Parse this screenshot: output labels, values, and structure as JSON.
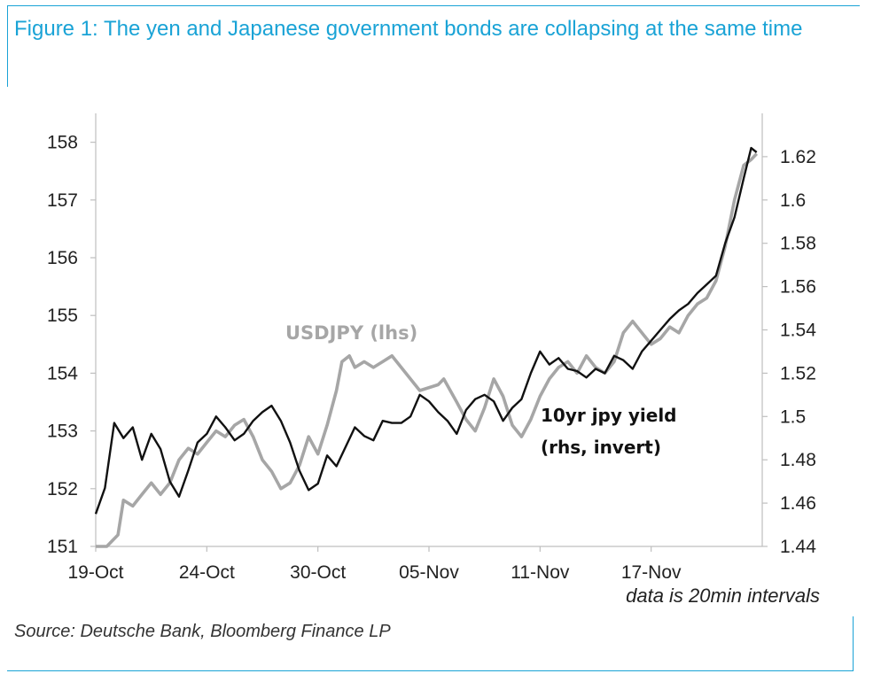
{
  "title": "Figure 1: The yen and Japanese government bonds are collapsing at the same time",
  "source": "Source: Deutsche Bank, Bloomberg Finance LP",
  "colors": {
    "title": "#1aa3d6",
    "usdjpy": "#a6a6a6",
    "yield": "#111111"
  },
  "chart_data": {
    "type": "line",
    "title": "Figure 1: The yen and Japanese government bonds are collapsing at the same time",
    "xlabel": "",
    "x_ticks": [
      "19-Oct",
      "24-Oct",
      "30-Oct",
      "05-Nov",
      "11-Nov",
      "17-Nov"
    ],
    "y_left": {
      "label": "USDJPY (lhs)",
      "ylim": [
        151,
        158.5
      ],
      "ticks": [
        "151",
        "152",
        "153",
        "154",
        "155",
        "156",
        "157",
        "158"
      ]
    },
    "y_right": {
      "label": "10yr jpy yield (rhs, invert)",
      "ylim": [
        1.44,
        1.64
      ],
      "ticks": [
        "1.44",
        "1.46",
        "1.48",
        "1.5",
        "1.52",
        "1.54",
        "1.56",
        "1.58",
        "1.6",
        "1.62"
      ]
    },
    "note": "data is 20min intervals",
    "series_labels": {
      "usdjpy": "USDJPY (lhs)",
      "yield_line1": "10yr  jpy yield",
      "yield_line2": "(rhs, invert)"
    },
    "series": [
      {
        "name": "USDJPY (lhs)",
        "axis": "left",
        "points": [
          [
            0,
            150.8
          ],
          [
            0.3,
            151.0
          ],
          [
            0.6,
            150.9
          ],
          [
            1.2,
            151.2
          ],
          [
            1.5,
            151.8
          ],
          [
            2.0,
            151.7
          ],
          [
            2.5,
            151.9
          ],
          [
            3.0,
            152.1
          ],
          [
            3.5,
            151.9
          ],
          [
            4.0,
            152.1
          ],
          [
            4.5,
            152.5
          ],
          [
            5.0,
            152.7
          ],
          [
            5.5,
            152.6
          ],
          [
            6.0,
            152.8
          ],
          [
            6.5,
            153.0
          ],
          [
            7.0,
            152.9
          ],
          [
            7.5,
            153.1
          ],
          [
            8.0,
            153.2
          ],
          [
            8.5,
            152.9
          ],
          [
            9.0,
            152.5
          ],
          [
            9.5,
            152.3
          ],
          [
            10.0,
            152.0
          ],
          [
            10.5,
            152.1
          ],
          [
            11.0,
            152.4
          ],
          [
            11.5,
            152.9
          ],
          [
            12.0,
            152.6
          ],
          [
            12.5,
            153.1
          ],
          [
            13.0,
            153.7
          ],
          [
            13.3,
            154.2
          ],
          [
            13.7,
            154.3
          ],
          [
            14.0,
            154.1
          ],
          [
            14.5,
            154.2
          ],
          [
            15.0,
            154.1
          ],
          [
            15.5,
            154.2
          ],
          [
            16.0,
            154.3
          ],
          [
            16.5,
            154.1
          ],
          [
            17.5,
            153.7
          ],
          [
            18.5,
            153.8
          ],
          [
            18.8,
            153.9
          ],
          [
            19.5,
            153.5
          ],
          [
            20.0,
            153.2
          ],
          [
            20.5,
            153.0
          ],
          [
            21.0,
            153.4
          ],
          [
            21.5,
            153.9
          ],
          [
            22.0,
            153.6
          ],
          [
            22.5,
            153.1
          ],
          [
            23.0,
            152.9
          ],
          [
            23.5,
            153.2
          ],
          [
            24.0,
            153.6
          ],
          [
            24.5,
            153.9
          ],
          [
            25.0,
            154.1
          ],
          [
            25.5,
            154.2
          ],
          [
            26.0,
            154.0
          ],
          [
            26.5,
            154.3
          ],
          [
            27.0,
            154.1
          ],
          [
            27.5,
            154.0
          ],
          [
            28.0,
            154.2
          ],
          [
            28.5,
            154.7
          ],
          [
            29.0,
            154.9
          ],
          [
            29.5,
            154.7
          ],
          [
            30.0,
            154.5
          ],
          [
            30.5,
            154.6
          ],
          [
            31.0,
            154.8
          ],
          [
            31.5,
            154.7
          ],
          [
            32.0,
            155.0
          ],
          [
            32.5,
            155.2
          ],
          [
            33.0,
            155.3
          ],
          [
            33.5,
            155.6
          ],
          [
            34.0,
            156.2
          ],
          [
            34.5,
            157.0
          ],
          [
            35.0,
            157.6
          ],
          [
            35.4,
            157.7
          ],
          [
            35.7,
            157.8
          ]
        ]
      },
      {
        "name": "10yr jpy yield (rhs, invert)",
        "axis": "right",
        "points": [
          [
            0,
            1.455
          ],
          [
            0.5,
            1.467
          ],
          [
            1.0,
            1.497
          ],
          [
            1.5,
            1.49
          ],
          [
            2.0,
            1.495
          ],
          [
            2.5,
            1.48
          ],
          [
            3.0,
            1.492
          ],
          [
            3.5,
            1.485
          ],
          [
            4.0,
            1.47
          ],
          [
            4.5,
            1.463
          ],
          [
            5.0,
            1.475
          ],
          [
            5.5,
            1.488
          ],
          [
            6.0,
            1.492
          ],
          [
            6.5,
            1.5
          ],
          [
            7.0,
            1.495
          ],
          [
            7.5,
            1.489
          ],
          [
            8.0,
            1.492
          ],
          [
            8.5,
            1.498
          ],
          [
            9.0,
            1.502
          ],
          [
            9.5,
            1.505
          ],
          [
            10.0,
            1.498
          ],
          [
            10.5,
            1.488
          ],
          [
            11.0,
            1.475
          ],
          [
            11.5,
            1.466
          ],
          [
            12.0,
            1.469
          ],
          [
            12.5,
            1.482
          ],
          [
            13.0,
            1.477
          ],
          [
            13.5,
            1.486
          ],
          [
            14.0,
            1.495
          ],
          [
            14.5,
            1.491
          ],
          [
            15.0,
            1.489
          ],
          [
            15.5,
            1.498
          ],
          [
            16.0,
            1.497
          ],
          [
            16.5,
            1.497
          ],
          [
            17.0,
            1.5
          ],
          [
            17.5,
            1.51
          ],
          [
            18.0,
            1.507
          ],
          [
            18.5,
            1.502
          ],
          [
            19.0,
            1.498
          ],
          [
            19.5,
            1.492
          ],
          [
            20.0,
            1.503
          ],
          [
            20.5,
            1.508
          ],
          [
            21.0,
            1.51
          ],
          [
            21.5,
            1.507
          ],
          [
            22.0,
            1.498
          ],
          [
            22.5,
            1.504
          ],
          [
            23.0,
            1.508
          ],
          [
            23.5,
            1.52
          ],
          [
            24.0,
            1.53
          ],
          [
            24.5,
            1.524
          ],
          [
            25.0,
            1.527
          ],
          [
            25.5,
            1.522
          ],
          [
            26.0,
            1.521
          ],
          [
            26.5,
            1.518
          ],
          [
            27.0,
            1.522
          ],
          [
            27.5,
            1.52
          ],
          [
            28.0,
            1.528
          ],
          [
            28.5,
            1.526
          ],
          [
            29.0,
            1.522
          ],
          [
            29.5,
            1.53
          ],
          [
            30.0,
            1.535
          ],
          [
            30.5,
            1.54
          ],
          [
            31.0,
            1.545
          ],
          [
            31.5,
            1.549
          ],
          [
            32.0,
            1.552
          ],
          [
            32.5,
            1.557
          ],
          [
            33.0,
            1.561
          ],
          [
            33.5,
            1.565
          ],
          [
            34.0,
            1.58
          ],
          [
            34.5,
            1.592
          ],
          [
            35.0,
            1.61
          ],
          [
            35.4,
            1.624
          ],
          [
            35.7,
            1.622
          ]
        ]
      }
    ]
  }
}
